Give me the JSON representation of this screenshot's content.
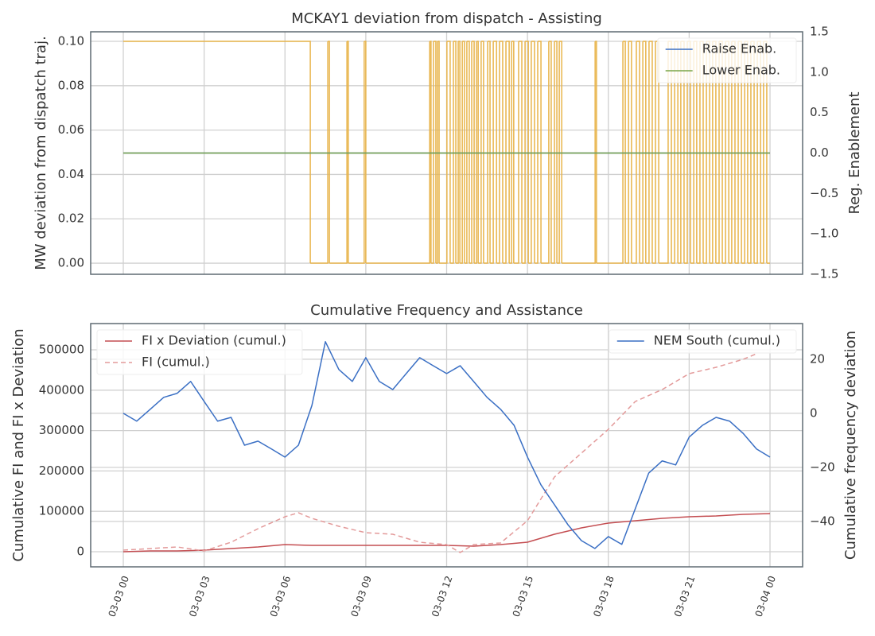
{
  "chart_data": [
    {
      "type": "line",
      "title": "MCKAY1 deviation from dispatch - Assisting",
      "ylabel": "MW deviation from dispatch traj.",
      "y2label": "Reg. Enablement",
      "ylim": [
        -0.005,
        0.1043
      ],
      "yticks": [
        {
          "value": 0,
          "label": "0.00"
        },
        {
          "value": 0.02,
          "label": "0.02"
        },
        {
          "value": 0.04,
          "label": "0.04"
        },
        {
          "value": 0.06,
          "label": "0.06"
        },
        {
          "value": 0.08,
          "label": "0.08"
        },
        {
          "value": 0.1,
          "label": "0.10"
        }
      ],
      "y2lim": [
        -1.5,
        1.5
      ],
      "y2ticks": [
        {
          "value": -1.5,
          "label": "−1.5"
        },
        {
          "value": -1.0,
          "label": "−1.0"
        },
        {
          "value": -0.5,
          "label": "−0.5"
        },
        {
          "value": 0,
          "label": "0.0"
        },
        0.5,
        {
          "value": 1.0,
          "label": "1.0"
        },
        1.5
      ],
      "grid": true,
      "y2legend": "upper right",
      "series": [
        {
          "color": "#e8b44a",
          "drawstyle": "steps-post",
          "x": [
            0,
            6.94,
            7.59,
            7.65,
            8.3,
            8.35,
            8.94,
            9.0,
            11.37,
            11.42,
            11.51,
            11.6,
            11.66,
            11.72,
            12.01,
            12.13,
            12.25,
            12.34,
            12.43,
            12.49,
            12.58,
            12.66,
            12.75,
            12.84,
            12.93,
            13.02,
            13.11,
            13.17,
            13.28,
            13.37,
            13.52,
            13.61,
            13.73,
            13.85,
            13.96,
            14.08,
            14.2,
            14.32,
            14.41,
            14.49,
            14.67,
            14.79,
            14.91,
            15.03,
            15.14,
            15.26,
            15.38,
            15.5,
            15.79,
            15.88,
            16.0,
            16.09,
            16.18,
            16.27,
            17.51,
            17.56,
            18.54,
            18.63,
            18.75,
            18.86,
            19.04,
            19.16,
            19.28,
            19.39,
            19.51,
            19.63,
            19.75,
            19.87,
            20.22,
            20.34,
            20.46,
            20.58,
            20.69,
            20.81,
            20.93,
            21.05,
            21.17,
            21.28,
            21.4,
            21.52,
            21.64,
            21.76,
            21.87,
            21.99,
            22.11,
            22.23,
            22.35,
            22.47,
            22.58,
            22.7,
            22.82,
            22.94,
            23.06,
            23.17,
            23.29,
            23.41,
            23.53,
            23.65,
            23.76,
            23.88,
            24.0
          ],
          "values": [
            0.1,
            0,
            0.1,
            0,
            0.1,
            0,
            0.1,
            0,
            0.1,
            0,
            0.1,
            0,
            0.1,
            0,
            0.1,
            0,
            0.1,
            0,
            0.1,
            0,
            0.1,
            0,
            0.1,
            0,
            0.1,
            0,
            0.1,
            0,
            0.1,
            0,
            0.1,
            0,
            0.1,
            0,
            0.1,
            0,
            0.1,
            0,
            0.1,
            0,
            0.1,
            0,
            0.1,
            0,
            0.1,
            0,
            0.1,
            0,
            0.1,
            0,
            0.1,
            0,
            0.1,
            0,
            0.1,
            0,
            0.1,
            0,
            0.1,
            0,
            0.1,
            0,
            0.1,
            0,
            0.1,
            0,
            0.1,
            0,
            0.1,
            0,
            0.1,
            0,
            0.1,
            0,
            0.1,
            0,
            0.1,
            0,
            0.1,
            0,
            0.1,
            0,
            0.1,
            0,
            0.1,
            0,
            0.1,
            0,
            0.1,
            0,
            0.1,
            0,
            0.1,
            0,
            0.1,
            0,
            0.1,
            0,
            0.1,
            0,
            0
          ]
        },
        {
          "name": "Raise Enab.",
          "color": "#3a6fc4",
          "axis": "y2",
          "x": [
            0,
            24
          ],
          "values": [
            0,
            0
          ]
        },
        {
          "name": "Lower Enab.",
          "color": "#7aa64a",
          "axis": "y2",
          "x": [
            0,
            24
          ],
          "values": [
            0,
            0
          ]
        }
      ]
    },
    {
      "type": "line",
      "title": "Cumulative Frequency and Assistance",
      "ylabel": "Cumulative FI and FI x Deviation",
      "y2label": "Cumulative frequency deviation",
      "xlim": [
        -1.21,
        25.21
      ],
      "xticks": [
        {
          "value": 0,
          "label": "03-03 00"
        },
        {
          "value": 3,
          "label": "03-03 03"
        },
        {
          "value": 6,
          "label": "03-03 06"
        },
        {
          "value": 9,
          "label": "03-03 09"
        },
        {
          "value": 12,
          "label": "03-03 12"
        },
        {
          "value": 15,
          "label": "03-03 15"
        },
        {
          "value": 18,
          "label": "03-03 18"
        },
        {
          "value": 21,
          "label": "03-03 21"
        },
        {
          "value": 24,
          "label": "03-04 00"
        }
      ],
      "ylim": [
        -37400,
        565000
      ],
      "yticks": [
        0,
        100000,
        200000,
        300000,
        400000,
        500000
      ],
      "y2lim": [
        -56.8,
        33.2
      ],
      "y2ticks": [
        {
          "value": -40,
          "label": "−40"
        },
        {
          "value": -20,
          "label": "−20"
        },
        0,
        20
      ],
      "grid": true,
      "legend": "upper left",
      "y2legend": "upper right",
      "series": [
        {
          "name": "FI x Deviation (cumul.)",
          "color": "#c44e52",
          "x": [
            0,
            1,
            2,
            3,
            4,
            5,
            6,
            7,
            8,
            9,
            10,
            11,
            12,
            13,
            14,
            15,
            16,
            17,
            18,
            19,
            20,
            21,
            22,
            23,
            24
          ],
          "values": [
            0,
            2000,
            2000,
            3900,
            7900,
            11800,
            17700,
            15700,
            15700,
            15700,
            15700,
            15700,
            15700,
            13800,
            17700,
            23600,
            43300,
            59100,
            70900,
            76800,
            82700,
            86600,
            88600,
            92500,
            94500
          ]
        },
        {
          "name": "FI (cumul.)",
          "color": "#e39a9a",
          "dash": true,
          "x": [
            0,
            1,
            2,
            3,
            4,
            5,
            6,
            6.5,
            7,
            8,
            9,
            10,
            11,
            12,
            12.5,
            13,
            14,
            15,
            16,
            17,
            18,
            19,
            20,
            21,
            22,
            23,
            23.5
          ],
          "values": [
            3900,
            7900,
            11800,
            2000,
            23600,
            57100,
            86600,
            96500,
            82700,
            63000,
            47200,
            43300,
            23600,
            17700,
            -2000,
            17700,
            21700,
            76800,
            185000,
            244100,
            303100,
            372000,
            401600,
            441000,
            456700,
            476400,
            490200
          ]
        },
        {
          "name": "NEM South (cumul.)",
          "color": "#3a6fc4",
          "axis": "y2",
          "x": [
            0,
            0.5,
            1,
            1.5,
            2,
            2.5,
            3,
            3.5,
            4,
            4.5,
            5,
            5.5,
            6,
            6.5,
            7,
            7.5,
            8,
            8.5,
            9,
            9.5,
            10,
            10.5,
            11,
            11.5,
            12,
            12.5,
            13,
            13.5,
            14,
            14.5,
            15,
            15.5,
            16,
            16.5,
            17,
            17.5,
            18,
            18.5,
            19,
            19.5,
            20,
            20.5,
            21,
            21.5,
            22,
            22.5,
            23,
            23.5,
            24
          ],
          "values": [
            0,
            -2.9,
            1.5,
            5.9,
            7.4,
            11.8,
            4.4,
            -2.9,
            -1.5,
            -11.8,
            -10.3,
            -13.2,
            -16.2,
            -11.8,
            2.9,
            26.5,
            16.2,
            11.8,
            20.6,
            11.8,
            8.8,
            14.7,
            20.6,
            17.6,
            14.7,
            17.6,
            11.8,
            5.9,
            1.5,
            -4.4,
            -16.2,
            -26.5,
            -33.8,
            -41.2,
            -47.1,
            -50,
            -45.6,
            -48.5,
            -35.3,
            -22.1,
            -17.6,
            -19.1,
            -8.8,
            -4.4,
            -1.5,
            -2.9,
            -7.4,
            -13.2,
            -16.2
          ]
        }
      ]
    }
  ]
}
